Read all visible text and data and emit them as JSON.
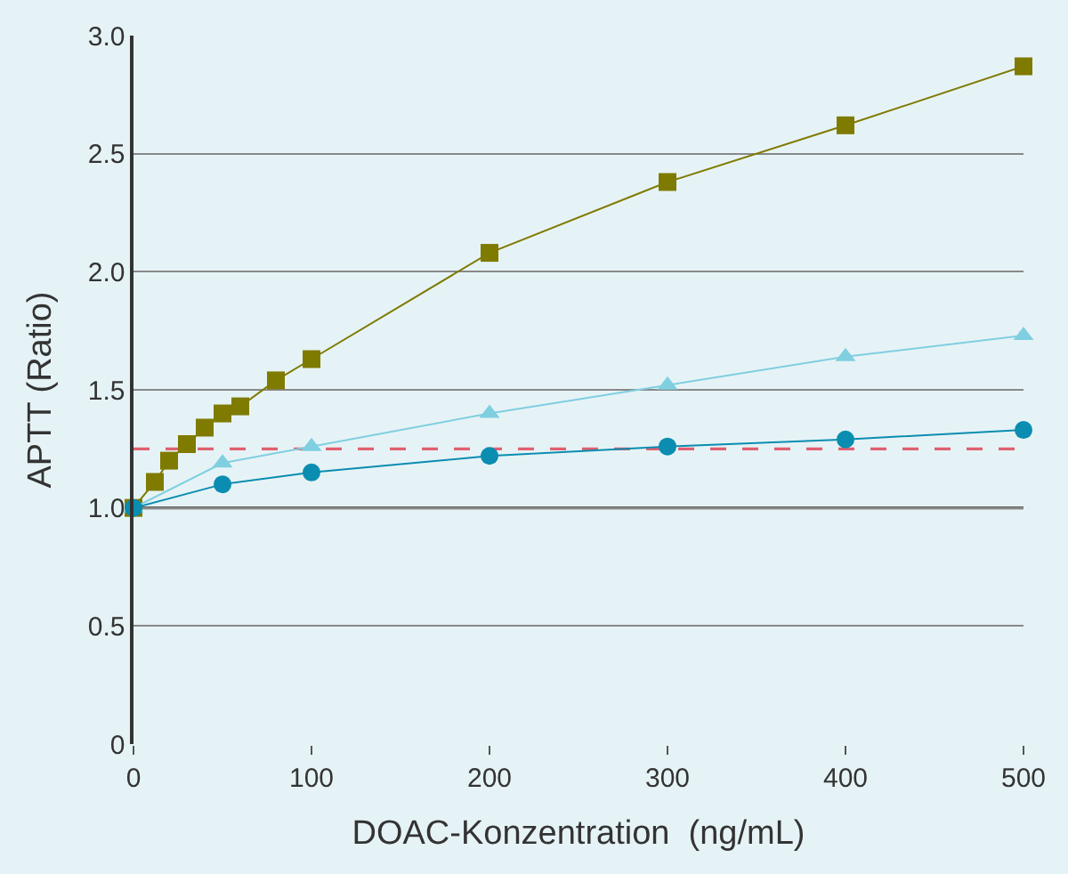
{
  "chart_data": {
    "type": "line",
    "xlabel": "DOAC-Konzentration  (ng/mL)",
    "ylabel": "APTT (Ratio)",
    "xlim": [
      0,
      500
    ],
    "xticks": [
      0,
      100,
      200,
      300,
      400,
      500
    ],
    "ylim": [
      0,
      3.0
    ],
    "yticks": [
      0,
      {
        "value": 0.5,
        "label": "0.5"
      },
      {
        "value": 1.0,
        "label": "1.0"
      },
      {
        "value": 1.5,
        "label": "1.5"
      },
      {
        "value": 2.0,
        "label": "2.0"
      },
      {
        "value": 2.5,
        "label": "2.5"
      },
      {
        "value": 3.0,
        "label": "3.0"
      }
    ],
    "grid": "y",
    "series": [
      {
        "color": "#7f7a00",
        "marker": "square",
        "x": [
          0,
          12,
          20,
          30,
          40,
          50,
          60,
          80,
          100,
          200,
          300,
          400,
          500
        ],
        "values": [
          1.0,
          1.11,
          1.2,
          1.27,
          1.34,
          1.4,
          1.43,
          1.54,
          1.63,
          2.08,
          2.38,
          2.62,
          2.87
        ]
      },
      {
        "color": "#7fcfe0",
        "marker": "triangle",
        "x": [
          0,
          50,
          100,
          200,
          300,
          400,
          500
        ],
        "values": [
          1.0,
          1.19,
          1.26,
          1.4,
          1.52,
          1.64,
          1.73
        ]
      },
      {
        "color": "#0a8db0",
        "marker": "circle",
        "x": [
          0,
          50,
          100,
          200,
          300,
          400,
          500
        ],
        "values": [
          1.0,
          1.1,
          1.15,
          1.22,
          1.26,
          1.29,
          1.33
        ]
      }
    ],
    "ref_lines": [
      {
        "axis": "y",
        "value": 1.25,
        "color": "#e06070",
        "line_style": "dashed"
      },
      {
        "axis": "y",
        "value": 1.0,
        "color": "#333333",
        "line_style": "solid"
      }
    ]
  }
}
